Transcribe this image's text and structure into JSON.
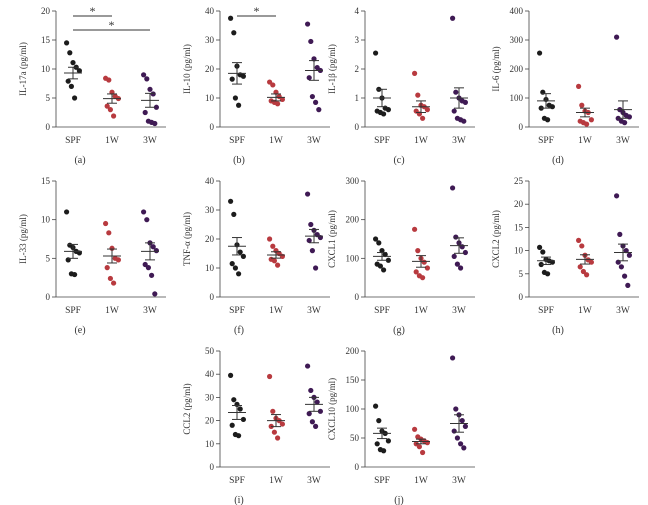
{
  "figure": {
    "colors": {
      "SPF": "#1c1c1c",
      "1W": "#b83a3f",
      "3W": "#3f1a54",
      "axis": "#444444"
    }
  },
  "chart_data": [
    {
      "id": "a",
      "type": "scatter",
      "panel_label": "(a)",
      "ylabel": "IL-17a (pg/ml)",
      "ylim": [
        0,
        20
      ],
      "yticks": [
        0,
        5,
        10,
        15,
        20
      ],
      "categories": [
        "SPF",
        "1W",
        "3W"
      ],
      "series": [
        {
          "name": "SPF",
          "values": [
            14.5,
            12.8,
            11.1,
            10.3,
            9.7,
            7.9,
            7.0,
            5.0
          ],
          "mean": 9.3,
          "sem": 1.0
        },
        {
          "name": "1W",
          "values": [
            8.4,
            8.1,
            6.0,
            5.3,
            4.9,
            3.6,
            3.0,
            1.9
          ],
          "mean": 4.9,
          "sem": 0.8
        },
        {
          "name": "3W",
          "values": [
            9.0,
            8.3,
            6.5,
            5.7,
            3.4,
            2.5,
            1.0,
            0.8,
            0.6
          ],
          "mean": 4.6,
          "sem": 1.2
        }
      ],
      "significance": [
        {
          "from": "SPF",
          "to": "1W",
          "label": "*"
        },
        {
          "from": "SPF",
          "to": "3W",
          "label": "*"
        }
      ]
    },
    {
      "id": "b",
      "type": "scatter",
      "panel_label": "(b)",
      "ylabel": "IL-10 (pg/ml)",
      "ylim": [
        0,
        40
      ],
      "yticks": [
        0,
        10,
        20,
        30,
        40
      ],
      "categories": [
        "SPF",
        "1W",
        "3W"
      ],
      "series": [
        {
          "name": "SPF",
          "values": [
            37.5,
            32.5,
            21.0,
            18.0,
            17.5,
            16.5,
            10.0,
            7.5
          ],
          "mean": 18.5,
          "sem": 3.7
        },
        {
          "name": "1W",
          "values": [
            15.5,
            14.5,
            12.0,
            10.5,
            9.5,
            9.0,
            8.5,
            8.0
          ],
          "mean": 10.2,
          "sem": 1.2
        },
        {
          "name": "3W",
          "values": [
            35.5,
            29.5,
            23.5,
            20.5,
            19.5,
            17.0,
            10.5,
            8.5,
            6.0
          ],
          "mean": 19.5,
          "sem": 3.4
        }
      ],
      "significance": [
        {
          "from": "SPF",
          "to": "1W",
          "label": "*"
        }
      ]
    },
    {
      "id": "c",
      "type": "scatter",
      "panel_label": "(c)",
      "ylabel": "IL-1β (pg/ml)",
      "ylim": [
        0,
        4
      ],
      "yticks": [
        0,
        1,
        2,
        3,
        4
      ],
      "categories": [
        "SPF",
        "1W",
        "3W"
      ],
      "series": [
        {
          "name": "SPF",
          "values": [
            2.55,
            1.3,
            1.0,
            0.65,
            0.6,
            0.55,
            0.5,
            0.45
          ],
          "mean": 1.0,
          "sem": 0.3
        },
        {
          "name": "1W",
          "values": [
            1.85,
            1.1,
            0.75,
            0.7,
            0.6,
            0.55,
            0.45,
            0.3
          ],
          "mean": 0.7,
          "sem": 0.2
        },
        {
          "name": "3W",
          "values": [
            3.75,
            1.2,
            1.0,
            0.9,
            0.85,
            0.55,
            0.3,
            0.25,
            0.2
          ],
          "mean": 1.0,
          "sem": 0.35
        }
      ]
    },
    {
      "id": "d",
      "type": "scatter",
      "panel_label": "(d)",
      "ylabel": "IL-6 (pg/ml)",
      "ylim": [
        0,
        400
      ],
      "yticks": [
        0,
        100,
        200,
        300,
        400
      ],
      "categories": [
        "SPF",
        "1W",
        "3W"
      ],
      "series": [
        {
          "name": "SPF",
          "values": [
            255,
            120,
            95,
            75,
            70,
            65,
            30,
            25
          ],
          "mean": 90,
          "sem": 25
        },
        {
          "name": "1W",
          "values": [
            140,
            75,
            55,
            50,
            25,
            20,
            15,
            10
          ],
          "mean": 50,
          "sem": 15
        },
        {
          "name": "3W",
          "values": [
            310,
            60,
            50,
            40,
            35,
            30,
            20,
            15
          ],
          "mean": 60,
          "sem": 30
        }
      ]
    },
    {
      "id": "e",
      "type": "scatter",
      "panel_label": "(e)",
      "ylabel": "IL-33 (pg/ml)",
      "ylim": [
        0,
        15
      ],
      "yticks": [
        0,
        5,
        10,
        15
      ],
      "categories": [
        "SPF",
        "1W",
        "3W"
      ],
      "series": [
        {
          "name": "SPF",
          "values": [
            11.0,
            6.7,
            6.4,
            5.9,
            5.7,
            4.8,
            3.0,
            2.9
          ],
          "mean": 5.9,
          "sem": 0.9
        },
        {
          "name": "1W",
          "values": [
            9.5,
            8.3,
            6.3,
            5.0,
            4.8,
            3.8,
            2.4,
            1.8
          ],
          "mean": 5.3,
          "sem": 0.9
        },
        {
          "name": "3W",
          "values": [
            11.0,
            10.0,
            7.0,
            6.5,
            6.0,
            4.2,
            3.8,
            2.8,
            0.4
          ],
          "mean": 5.9,
          "sem": 1.1
        }
      ]
    },
    {
      "id": "f",
      "type": "scatter",
      "panel_label": "(f)",
      "ylabel": "TNF-α (pg/ml)",
      "ylim": [
        0,
        40
      ],
      "yticks": [
        0,
        10,
        20,
        30,
        40
      ],
      "categories": [
        "SPF",
        "1W",
        "3W"
      ],
      "series": [
        {
          "name": "SPF",
          "values": [
            33.0,
            28.5,
            18.0,
            15.5,
            14.0,
            11.5,
            10.0,
            8.0
          ],
          "mean": 17.5,
          "sem": 3.0
        },
        {
          "name": "1W",
          "values": [
            20.0,
            17.5,
            16.0,
            15.0,
            14.0,
            13.0,
            12.5,
            11.0
          ],
          "mean": 14.5,
          "sem": 1.1
        },
        {
          "name": "3W",
          "values": [
            35.5,
            25.0,
            23.0,
            21.5,
            20.5,
            19.5,
            16.0,
            10.0
          ],
          "mean": 21.0,
          "sem": 2.3
        }
      ]
    },
    {
      "id": "g",
      "type": "scatter",
      "panel_label": "(g)",
      "ylabel": "CXCL1 (pg/ml)",
      "ylim": [
        0,
        300
      ],
      "yticks": [
        0,
        100,
        200,
        300
      ],
      "categories": [
        "SPF",
        "1W",
        "3W"
      ],
      "series": [
        {
          "name": "SPF",
          "values": [
            150,
            140,
            120,
            110,
            95,
            85,
            80,
            70
          ],
          "mean": 105,
          "sem": 10
        },
        {
          "name": "1W",
          "values": [
            175,
            120,
            100,
            90,
            75,
            65,
            55,
            50
          ],
          "mean": 92,
          "sem": 15
        },
        {
          "name": "3W",
          "values": [
            282,
            155,
            140,
            130,
            115,
            105,
            85,
            75
          ],
          "mean": 133,
          "sem": 20
        }
      ]
    },
    {
      "id": "h",
      "type": "scatter",
      "panel_label": "(h)",
      "ylabel": "CXCL2 (pg/ml)",
      "ylim": [
        0,
        25
      ],
      "yticks": [
        0,
        5,
        10,
        15,
        20,
        25
      ],
      "categories": [
        "SPF",
        "1W",
        "3W"
      ],
      "series": [
        {
          "name": "SPF",
          "values": [
            10.7,
            9.7,
            8.1,
            7.8,
            7.5,
            7.0,
            5.3,
            5.0
          ],
          "mean": 7.8,
          "sem": 0.8
        },
        {
          "name": "1W",
          "values": [
            12.2,
            11.0,
            9.0,
            8.0,
            7.5,
            6.5,
            5.5,
            4.8
          ],
          "mean": 8.1,
          "sem": 1.0
        },
        {
          "name": "3W",
          "values": [
            21.8,
            13.5,
            11.0,
            10.0,
            9.0,
            7.5,
            6.5,
            4.5,
            2.5
          ],
          "mean": 9.6,
          "sem": 1.8
        }
      ]
    },
    {
      "id": "i",
      "type": "scatter",
      "panel_label": "(i)",
      "ylabel": "CCL2 (pg/ml)",
      "ylim": [
        0,
        50
      ],
      "yticks": [
        0,
        10,
        20,
        30,
        40,
        50
      ],
      "categories": [
        "SPF",
        "1W",
        "3W"
      ],
      "series": [
        {
          "name": "SPF",
          "values": [
            39.5,
            29.0,
            27.0,
            25.0,
            20.5,
            18.0,
            14.0,
            13.5
          ],
          "mean": 23.5,
          "sem": 3.0
        },
        {
          "name": "1W",
          "values": [
            39.0,
            24.0,
            21.0,
            20.0,
            18.5,
            17.5,
            15.0,
            12.5
          ],
          "mean": 20.0,
          "sem": 2.6
        },
        {
          "name": "3W",
          "values": [
            43.5,
            33.0,
            30.0,
            28.0,
            24.0,
            23.0,
            19.5,
            17.5
          ],
          "mean": 27.0,
          "sem": 3.0
        }
      ]
    },
    {
      "id": "j",
      "type": "scatter",
      "panel_label": "(j)",
      "ylabel": "CXCL10 (pg/ml)",
      "ylim": [
        0,
        200
      ],
      "yticks": [
        0,
        50,
        100,
        150,
        200
      ],
      "categories": [
        "SPF",
        "1W",
        "3W"
      ],
      "series": [
        {
          "name": "SPF",
          "values": [
            105,
            80,
            62,
            58,
            45,
            40,
            30,
            28
          ],
          "mean": 58,
          "sem": 9
        },
        {
          "name": "1W",
          "values": [
            65,
            52,
            48,
            45,
            42,
            40,
            35,
            25
          ],
          "mean": 44,
          "sem": 4
        },
        {
          "name": "3W",
          "values": [
            188,
            100,
            90,
            80,
            70,
            62,
            50,
            40,
            33
          ],
          "mean": 75,
          "sem": 15
        }
      ]
    }
  ]
}
